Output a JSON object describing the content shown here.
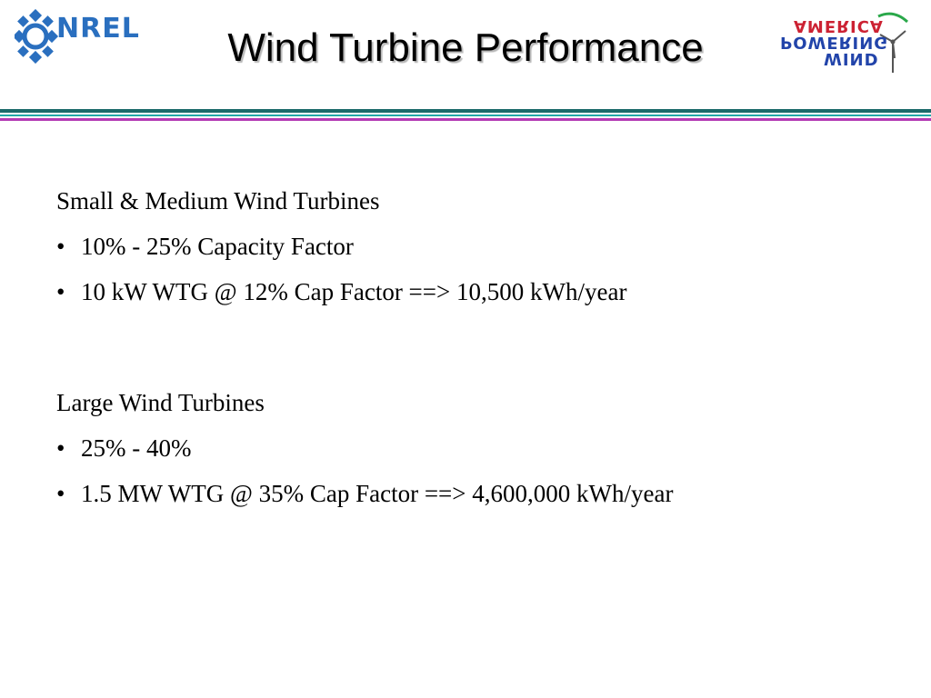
{
  "header": {
    "logo_left": "NREL",
    "title": "Wind Turbine Performance",
    "logo_right_lines": [
      "AMERICA",
      "POWERING",
      "WIND"
    ]
  },
  "sections": [
    {
      "heading": "Small & Medium Wind Turbines",
      "bullets": [
        "10% - 25% Capacity Factor",
        "10 kW WTG @ 12% Cap Factor ==> 10,500 kWh/year"
      ]
    },
    {
      "heading": "Large Wind Turbines",
      "bullets": [
        "25% - 40%",
        "1.5 MW WTG @ 35% Cap Factor ==> 4,600,000 kWh/year"
      ]
    }
  ],
  "bullet_glyph": "•",
  "colors": {
    "nrel_blue": "#2a6fbf",
    "rule_dark_teal": "#1b6a6a",
    "rule_teal": "#22a8a8",
    "rule_magenta": "#b43bb4",
    "wpa_red": "#cc2233",
    "wpa_blue": "#2244aa"
  },
  "icons": [
    "nrel-sunburst-icon",
    "wind-turbine-icon"
  ]
}
